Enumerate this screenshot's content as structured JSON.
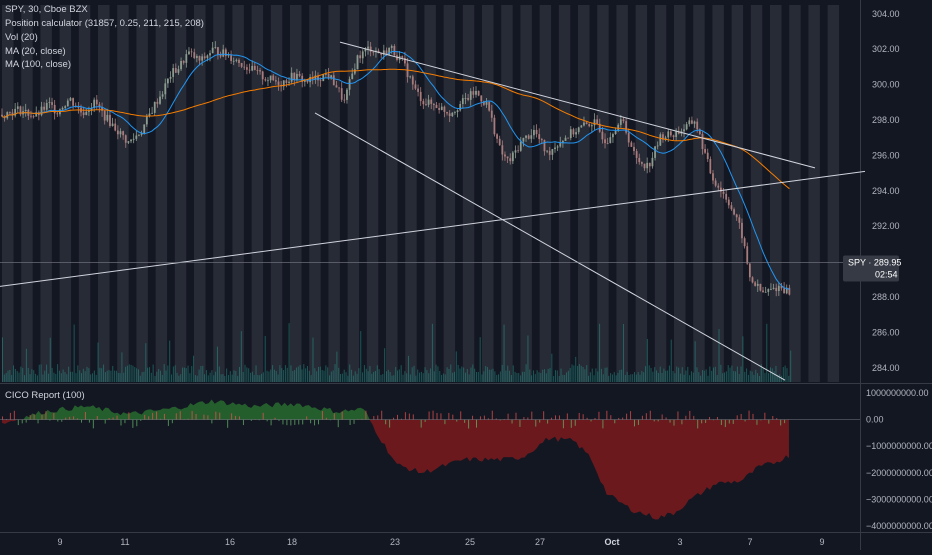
{
  "legend": {
    "symbol": "SPY, 30, Cboe BZX",
    "indicator_1": "Position calculator (31857, 0.25, 211, 215, 208)",
    "indicator_2": "Vol (20)",
    "indicator_3": "MA (20, close)",
    "indicator_4": "MA (100, close)"
  },
  "lower_pane": {
    "title": "CICO Report (100)"
  },
  "price_tag": {
    "symbol": "SPY",
    "value": "289.95",
    "countdown": "02:54"
  },
  "colors": {
    "background": "#131722",
    "session_band": "#2a2e39",
    "up_candle": "#8c9b8f",
    "down_candle": "#a87c7c",
    "ma20": "#2196f3",
    "ma100": "#f57c00",
    "trendline": "#d1d4dc",
    "volume": "#26a69a",
    "cico_positive": "#2e7d32",
    "cico_negative": "#b71c1c",
    "axis_text": "#b2b5be"
  },
  "chart_data": [
    {
      "type": "candlestick",
      "title": "SPY, 30, Cboe BZX",
      "y_axis_ticks": [
        "304.00",
        "302.00",
        "300.00",
        "298.00",
        "296.00",
        "294.00",
        "292.00",
        "290.00",
        "288.00",
        "286.00",
        "284.00"
      ],
      "ylim": [
        283.2,
        304.5
      ],
      "x_axis_ticks": [
        "9",
        "11",
        "16",
        "18",
        "23",
        "25",
        "27",
        "Oct",
        "3",
        "7",
        "9"
      ],
      "current_price": 289.95,
      "close_path": {
        "x": [
          0,
          0.02,
          0.04,
          0.055,
          0.065,
          0.08,
          0.095,
          0.11,
          0.12,
          0.135,
          0.15,
          0.165,
          0.18,
          0.19,
          0.2,
          0.21,
          0.22,
          0.235,
          0.25,
          0.27,
          0.29,
          0.31,
          0.33,
          0.345,
          0.36,
          0.37,
          0.385,
          0.395,
          0.405,
          0.42,
          0.435,
          0.45,
          0.46,
          0.475,
          0.49,
          0.5,
          0.515,
          0.53,
          0.545,
          0.56,
          0.575,
          0.59,
          0.6,
          0.615,
          0.63,
          0.645,
          0.66,
          0.675,
          0.69,
          0.7,
          0.715,
          0.725,
          0.735,
          0.75,
          0.765,
          0.78,
          0.795,
          0.81,
          0.82,
          0.84,
          0.86,
          0.875,
          0.885,
          0.9,
          0.92,
          0.935
        ],
        "y": [
          298.3,
          298.6,
          298.2,
          298.9,
          298.5,
          299.2,
          298.4,
          299.0,
          298.3,
          297.5,
          296.7,
          297.4,
          298.8,
          299.6,
          300.6,
          301.0,
          301.8,
          301.3,
          302.0,
          301.6,
          301.0,
          300.4,
          300.1,
          300.5,
          300.2,
          300.3,
          300.6,
          300.0,
          299.0,
          301.5,
          302.1,
          301.7,
          302.1,
          301.2,
          299.6,
          299.0,
          298.8,
          298.4,
          299.0,
          299.6,
          298.8,
          296.2,
          295.6,
          296.8,
          297.4,
          296.1,
          296.8,
          297.3,
          297.7,
          297.9,
          296.8,
          297.6,
          297.9,
          295.8,
          295.4,
          297.1,
          297.2,
          297.6,
          298.0,
          294.8,
          293.4,
          291.7,
          289.1,
          288.2,
          288.6,
          288.2
        ]
      },
      "trendlines": [
        {
          "from": [
            "Sep 18",
            302.4
          ],
          "to": [
            "Oct 9",
            295.3
          ]
        },
        {
          "from": [
            "Sep 18",
            298.4
          ],
          "to": [
            "Oct 8",
            283.3
          ]
        },
        {
          "from": [
            "Sep 6",
            288.6
          ],
          "to": [
            "Oct 9",
            295.1
          ]
        }
      ],
      "series": [
        {
          "name": "MA (20, close)"
        },
        {
          "name": "MA (100, close)"
        },
        {
          "name": "Vol (20)"
        }
      ]
    },
    {
      "type": "area",
      "title": "CICO Report (100)",
      "y_axis_ticks": [
        "1000000000.00",
        "0.00",
        "−1000000000.00",
        "−2000000000.00",
        "−3000000000.00",
        "−4000000000.00"
      ],
      "ylim": [
        -4150000000,
        1300000000
      ],
      "x": [
        0,
        0.05,
        0.1,
        0.15,
        0.2,
        0.25,
        0.3,
        0.35,
        0.4,
        0.43,
        0.45,
        0.47,
        0.5,
        0.52,
        0.55,
        0.6,
        0.62,
        0.65,
        0.68,
        0.7,
        0.72,
        0.75,
        0.78,
        0.8,
        0.82,
        0.85,
        0.88,
        0.9,
        0.92,
        0.94
      ],
      "values": [
        -150000000,
        300000000,
        500000000,
        200000000,
        400000000,
        700000000,
        500000000,
        600000000,
        300000000,
        400000000,
        -700000000,
        -1700000000,
        -2000000000,
        -1800000000,
        -1500000000,
        -1500000000,
        -1400000000,
        -700000000,
        -800000000,
        -1400000000,
        -2800000000,
        -3400000000,
        -3700000000,
        -3500000000,
        -3000000000,
        -2400000000,
        -2300000000,
        -1800000000,
        -1600000000,
        -1300000000
      ]
    }
  ]
}
